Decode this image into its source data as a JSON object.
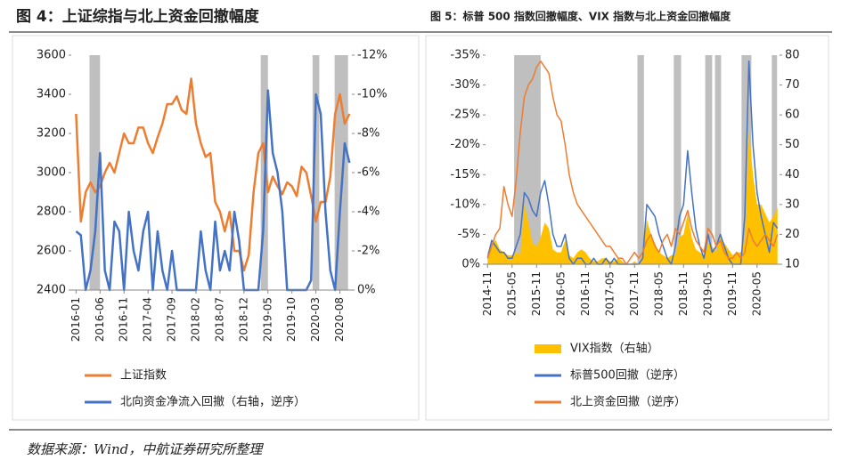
{
  "chart_data": [
    {
      "type": "line",
      "title": "图 4：上证综指与北上资金回撤幅度",
      "x": [
        0,
        1,
        2,
        3,
        4,
        5,
        6,
        7,
        8,
        9,
        10,
        11,
        12,
        13,
        14,
        15,
        16,
        17,
        18,
        19,
        20,
        21,
        22,
        23,
        24,
        25,
        26,
        27,
        28,
        29,
        30,
        31,
        32,
        33,
        34,
        35,
        36,
        37,
        38,
        39,
        40,
        41,
        42,
        43,
        44,
        45,
        46,
        47,
        48,
        49,
        50,
        51,
        52,
        53,
        54,
        55,
        56,
        57
      ],
      "xlim": [
        -1,
        57.5
      ],
      "xticks": [
        {
          "value": 0,
          "label": "2016-01"
        },
        {
          "value": 5,
          "label": "2016-06"
        },
        {
          "value": 10,
          "label": "2016-11"
        },
        {
          "value": 15,
          "label": "2017-04"
        },
        {
          "value": 20,
          "label": "2017-09"
        },
        {
          "value": 25,
          "label": "2018-02"
        },
        {
          "value": 30,
          "label": "2018-07"
        },
        {
          "value": 35,
          "label": "2018-12"
        },
        {
          "value": 40,
          "label": "2019-05"
        },
        {
          "value": 45,
          "label": "2019-10"
        },
        {
          "value": 50,
          "label": "2020-03"
        },
        {
          "value": 55,
          "label": "2020-08"
        }
      ],
      "ylim": [
        2400,
        3600
      ],
      "yticks": [
        2400,
        2600,
        2800,
        3000,
        3200,
        3400,
        3600
      ],
      "y2lim": [
        0,
        -12
      ],
      "y2ticks": [
        {
          "value": 0,
          "label": "0%"
        },
        {
          "value": -2,
          "label": "-2%"
        },
        {
          "value": -4,
          "label": "-4%"
        },
        {
          "value": -6,
          "label": "-6%"
        },
        {
          "value": -8,
          "label": "-8%"
        },
        {
          "value": -10,
          "label": "-10%"
        },
        {
          "value": -12,
          "label": "-12%"
        }
      ],
      "bands": [
        [
          2.8,
          5.0
        ],
        [
          38.5,
          40.0
        ],
        [
          49.3,
          50.7
        ],
        [
          53.9,
          56.7
        ]
      ],
      "series": [
        {
          "name": "上证指数",
          "color": "#ED7D31",
          "style": "line",
          "values": [
            3300,
            2750,
            2900,
            2950,
            2900,
            2930,
            3000,
            3050,
            3000,
            3100,
            3200,
            3150,
            3150,
            3230,
            3230,
            3150,
            3100,
            3180,
            3250,
            3350,
            3350,
            3390,
            3320,
            3300,
            3480,
            3250,
            3150,
            3080,
            3100,
            2850,
            2800,
            2700,
            2800,
            2600,
            2600,
            2500,
            2580,
            2900,
            3100,
            3150,
            2900,
            2980,
            2930,
            2890,
            2950,
            2930,
            2880,
            3030,
            3000,
            2880,
            2750,
            2850,
            2850,
            2980,
            3300,
            3400,
            3250,
            3300
          ]
        },
        {
          "name": "北向资金净流入回撤（右轴，逆序）",
          "color": "#4472C4",
          "style": "line",
          "axis": "y2",
          "values": [
            -3,
            -2.8,
            0,
            -1,
            -3,
            -7,
            -1,
            0,
            -3.5,
            -3,
            0,
            -4,
            -2,
            -1,
            -3,
            -4,
            0,
            -3,
            -1,
            0,
            -2,
            0,
            0,
            0,
            0,
            0,
            -3,
            -1,
            0,
            -3.5,
            -1,
            -2,
            -1,
            -4,
            -2.5,
            0,
            0,
            0,
            0,
            -3,
            -10.2,
            -7,
            -6,
            -4,
            0,
            0,
            0,
            0,
            0,
            -0.5,
            -10,
            -9,
            -4,
            -1,
            0,
            -4,
            -7.5,
            -6.5
          ]
        }
      ]
    },
    {
      "type": "line",
      "title": "图 5：标普 500 指数回撤幅度、VIX 指数与北上资金回撤幅度",
      "x": [
        0,
        1,
        2,
        3,
        4,
        5,
        6,
        7,
        8,
        9,
        10,
        11,
        12,
        13,
        14,
        15,
        16,
        17,
        18,
        19,
        20,
        21,
        22,
        23,
        24,
        25,
        26,
        27,
        28,
        29,
        30,
        31,
        32,
        33,
        34,
        35,
        36,
        37,
        38,
        39,
        40,
        41,
        42,
        43,
        44,
        45,
        46,
        47,
        48,
        49,
        50,
        51,
        52,
        53,
        54,
        55,
        56,
        57,
        58,
        59,
        60,
        61,
        62,
        63,
        64,
        65,
        66,
        67,
        68,
        69,
        70,
        71
      ],
      "xlim": [
        -0.5,
        71.5
      ],
      "xticks": [
        {
          "value": 0,
          "label": "2014-11"
        },
        {
          "value": 6,
          "label": "2015-05"
        },
        {
          "value": 12,
          "label": "2015-11"
        },
        {
          "value": 18,
          "label": "2016-05"
        },
        {
          "value": 24,
          "label": "2016-11"
        },
        {
          "value": 30,
          "label": "2017-05"
        },
        {
          "value": 36,
          "label": "2017-11"
        },
        {
          "value": 42,
          "label": "2018-05"
        },
        {
          "value": 48,
          "label": "2018-11"
        },
        {
          "value": 54,
          "label": "2019-05"
        },
        {
          "value": 60,
          "label": "2019-11"
        },
        {
          "value": 66,
          "label": "2020-05"
        }
      ],
      "ylim": [
        0,
        -35
      ],
      "yticks": [
        {
          "value": 0,
          "label": "0%"
        },
        {
          "value": -5,
          "label": "-5%"
        },
        {
          "value": -10,
          "label": "-10%"
        },
        {
          "value": -15,
          "label": "-15%"
        },
        {
          "value": -20,
          "label": "-20%"
        },
        {
          "value": -25,
          "label": "-25%"
        },
        {
          "value": -30,
          "label": "-30%"
        },
        {
          "value": -35,
          "label": "-35%"
        }
      ],
      "y2lim": [
        10,
        80
      ],
      "y2ticks": [
        10,
        20,
        30,
        40,
        50,
        60,
        70,
        80
      ],
      "bands": [
        [
          6.5,
          13.0
        ],
        [
          36.7,
          38.3
        ],
        [
          45.6,
          47.4
        ],
        [
          53.3,
          55.0
        ],
        [
          55.7,
          57.2
        ],
        [
          62.2,
          64.6
        ],
        [
          69.6,
          70.9
        ]
      ],
      "series": [
        {
          "name": "VIX指数（右轴）",
          "color": "#FFC000",
          "style": "area",
          "axis": "y2",
          "values": [
            14,
            17,
            18,
            15,
            14,
            13,
            13,
            14,
            13,
            30,
            24,
            17,
            16,
            19,
            24,
            22,
            15,
            14,
            14,
            18,
            13,
            12,
            14,
            15,
            14,
            12,
            11,
            11,
            12,
            12,
            11,
            11,
            12,
            11,
            10,
            10,
            11,
            10,
            13,
            25,
            20,
            17,
            14,
            13,
            12,
            13,
            13,
            19,
            20,
            27,
            19,
            15,
            14,
            13,
            17,
            16,
            14,
            19,
            17,
            15,
            13,
            14,
            14,
            18,
            55,
            40,
            30,
            30,
            27,
            24,
            26,
            29
          ]
        },
        {
          "name": "标普500回撤（逆序）",
          "color": "#4472C4",
          "style": "line",
          "values": [
            -1,
            -4,
            -3,
            -2,
            -2,
            -1,
            -1,
            -3,
            -5,
            -12,
            -11,
            -9,
            -8,
            -12,
            -14,
            -10,
            -5,
            -3,
            -3,
            -5,
            -1,
            0,
            -1,
            -1,
            0,
            0,
            -1,
            0,
            0,
            -1,
            0,
            -1,
            0,
            0,
            0,
            0,
            0,
            0,
            -1,
            -10,
            -9,
            -8,
            -5,
            -3,
            -1,
            0,
            -3,
            -8,
            -10,
            -19,
            -12,
            -6,
            -3,
            -1,
            -5,
            -2,
            -3,
            -5,
            -3,
            -1,
            0,
            0,
            0,
            -8,
            -34,
            -20,
            -12,
            -8,
            -5,
            -2,
            -7,
            -6
          ]
        },
        {
          "name": "北上资金回撤（逆序）",
          "color": "#ED7D31",
          "style": "line",
          "values": [
            -1,
            -3,
            -5,
            -6,
            -13,
            -10,
            -8,
            -14,
            -22,
            -28,
            -30,
            -31,
            -33,
            -34,
            -33,
            -32,
            -28,
            -25,
            -24,
            -20,
            -15,
            -12,
            -10,
            -9,
            -8,
            -7,
            -6,
            -5,
            -4,
            -3,
            -3,
            -2,
            -1,
            -1,
            0,
            -1,
            -2,
            -1,
            -2,
            -4,
            -5,
            -3,
            -2,
            -4,
            -5,
            -3,
            -6,
            -5,
            -7,
            -9,
            -6,
            -4,
            -3,
            -2,
            -6,
            -5,
            -3,
            -4,
            -2,
            -1,
            -1,
            -2,
            -1,
            -2,
            -6,
            -4,
            -3,
            -4,
            -5,
            -4,
            -3,
            -5
          ]
        }
      ]
    }
  ],
  "source": "数据来源：Wind，中航证券研究所整理"
}
